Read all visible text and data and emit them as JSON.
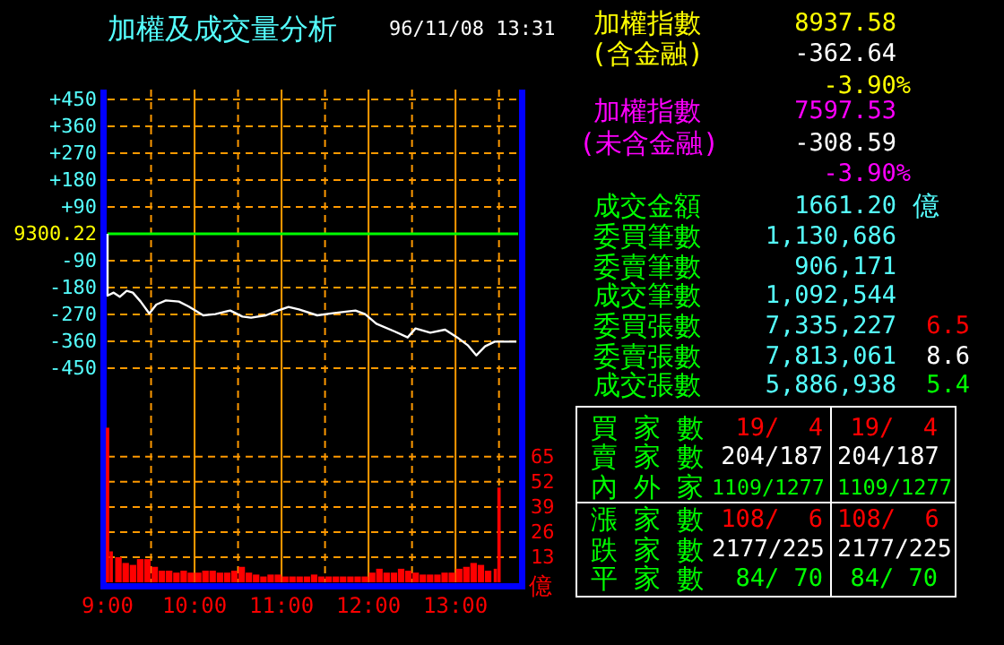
{
  "chart_data": [
    {
      "type": "line",
      "title": "加權及成交量分析",
      "subtitle": "96/11/08 13:31",
      "y2label": "億",
      "xlim": [
        9,
        13.72
      ],
      "xticks": [
        {
          "value": 9,
          "label": "9:00"
        },
        {
          "value": 9.5,
          "label": null
        },
        {
          "value": 10,
          "label": "10:00"
        },
        {
          "value": 10.5,
          "label": null
        },
        {
          "value": 11,
          "label": "11:00"
        },
        {
          "value": 11.5,
          "label": null
        },
        {
          "value": 12,
          "label": "12:00"
        },
        {
          "value": 12.5,
          "label": null
        },
        {
          "value": 13,
          "label": "13:00"
        },
        {
          "value": 13.5,
          "label": null
        }
      ],
      "ylim": [
        -1167,
        483
      ],
      "yticks": [
        {
          "value": 450,
          "label": "+450"
        },
        {
          "value": 360,
          "label": "+360"
        },
        {
          "value": 270,
          "label": "+270"
        },
        {
          "value": 180,
          "label": "+180"
        },
        {
          "value": 90,
          "label": "+90"
        },
        -90,
        -180,
        -270,
        -360,
        -450
      ],
      "y2lim": [
        0,
        255
      ],
      "y2ticks": [
        13,
        26,
        39,
        52,
        65
      ],
      "grid": true,
      "ref_lines": [
        {
          "axis": "y",
          "value": 0,
          "color": "#00ff00"
        }
      ],
      "annotations": [
        "9300.22"
      ],
      "series": [
        {
          "type": "line",
          "color": "#ffffff",
          "x": [
            9,
            9,
            9.07,
            9.14,
            9.22,
            9.29,
            9.38,
            9.48,
            9.56,
            9.67,
            9.82,
            9.93,
            10.1,
            10.24,
            10.41,
            10.55,
            10.65,
            10.82,
            10.96,
            11.08,
            11.2,
            11.41,
            11.61,
            11.85,
            11.96,
            12.09,
            12.3,
            12.45,
            12.54,
            12.71,
            12.88,
            13.02,
            13.14,
            13.24,
            13.34,
            13.45,
            13.7
          ],
          "values": [
            0,
            -207,
            -197,
            -211,
            -191,
            -197,
            -227,
            -267,
            -237,
            -223,
            -227,
            -243,
            -273,
            -269,
            -257,
            -277,
            -281,
            -273,
            -257,
            -245,
            -253,
            -273,
            -265,
            -257,
            -269,
            -301,
            -327,
            -347,
            -317,
            -331,
            -321,
            -347,
            -373,
            -407,
            -377,
            -361,
            -361
          ]
        },
        {
          "type": "bar",
          "axis": "y2",
          "color": "#ff0000",
          "x": [
            9,
            9.042,
            9.125,
            9.208,
            9.292,
            9.375,
            9.458,
            9.542,
            9.625,
            9.708,
            9.792,
            9.875,
            9.958,
            10.042,
            10.125,
            10.208,
            10.292,
            10.375,
            10.458,
            10.542,
            10.625,
            10.708,
            10.792,
            10.875,
            10.958,
            11.042,
            11.125,
            11.208,
            11.292,
            11.375,
            11.458,
            11.542,
            11.625,
            11.708,
            11.792,
            11.875,
            11.958,
            12.042,
            12.125,
            12.208,
            12.292,
            12.375,
            12.458,
            12.542,
            12.625,
            12.708,
            12.792,
            12.875,
            12.958,
            13.042,
            13.125,
            13.208,
            13.292,
            13.375,
            13.458,
            13.5
          ],
          "values": [
            80,
            16,
            13,
            10,
            9,
            12,
            12,
            8,
            6,
            6,
            5,
            6,
            5,
            5,
            6,
            6,
            5,
            5,
            6,
            8,
            5,
            4,
            3,
            4,
            4,
            3,
            3,
            3,
            3,
            4,
            3,
            3,
            3,
            3,
            3,
            3,
            3,
            5,
            7,
            5,
            5,
            7,
            6,
            5,
            4,
            4,
            4,
            5,
            5,
            7,
            8,
            10,
            9,
            6,
            7,
            49
          ]
        }
      ]
    },
    {
      "type": "other",
      "annotations": [
        "加權指數",
        "8937.58",
        "(含金融)",
        "-362.64",
        "-3.90%",
        "加權指數",
        "7597.53",
        "(未含金融)",
        "-308.59",
        "-3.90%",
        "成交金額",
        "1661.20",
        "億",
        "委買筆數",
        "1,130,686",
        "委賣筆數",
        "906,171",
        "成交筆數",
        "1,092,544",
        "委買張數",
        "7,335,227",
        "6.5",
        "委賣張數",
        "7,813,061",
        "8.6",
        "成交張數",
        "5,886,938",
        "5.4",
        "買 家 數",
        "19/  4",
        "19/  4",
        "賣 家 數",
        "204/187",
        "204/187",
        "內 外 家",
        "1109/1277",
        "1109/1277",
        "漲 家 數",
        "108/  6",
        "108/  6",
        "跌 家 數",
        "2177/225",
        "2177/225",
        "平 家 數",
        "84/ 70",
        "84/ 70"
      ]
    }
  ]
}
